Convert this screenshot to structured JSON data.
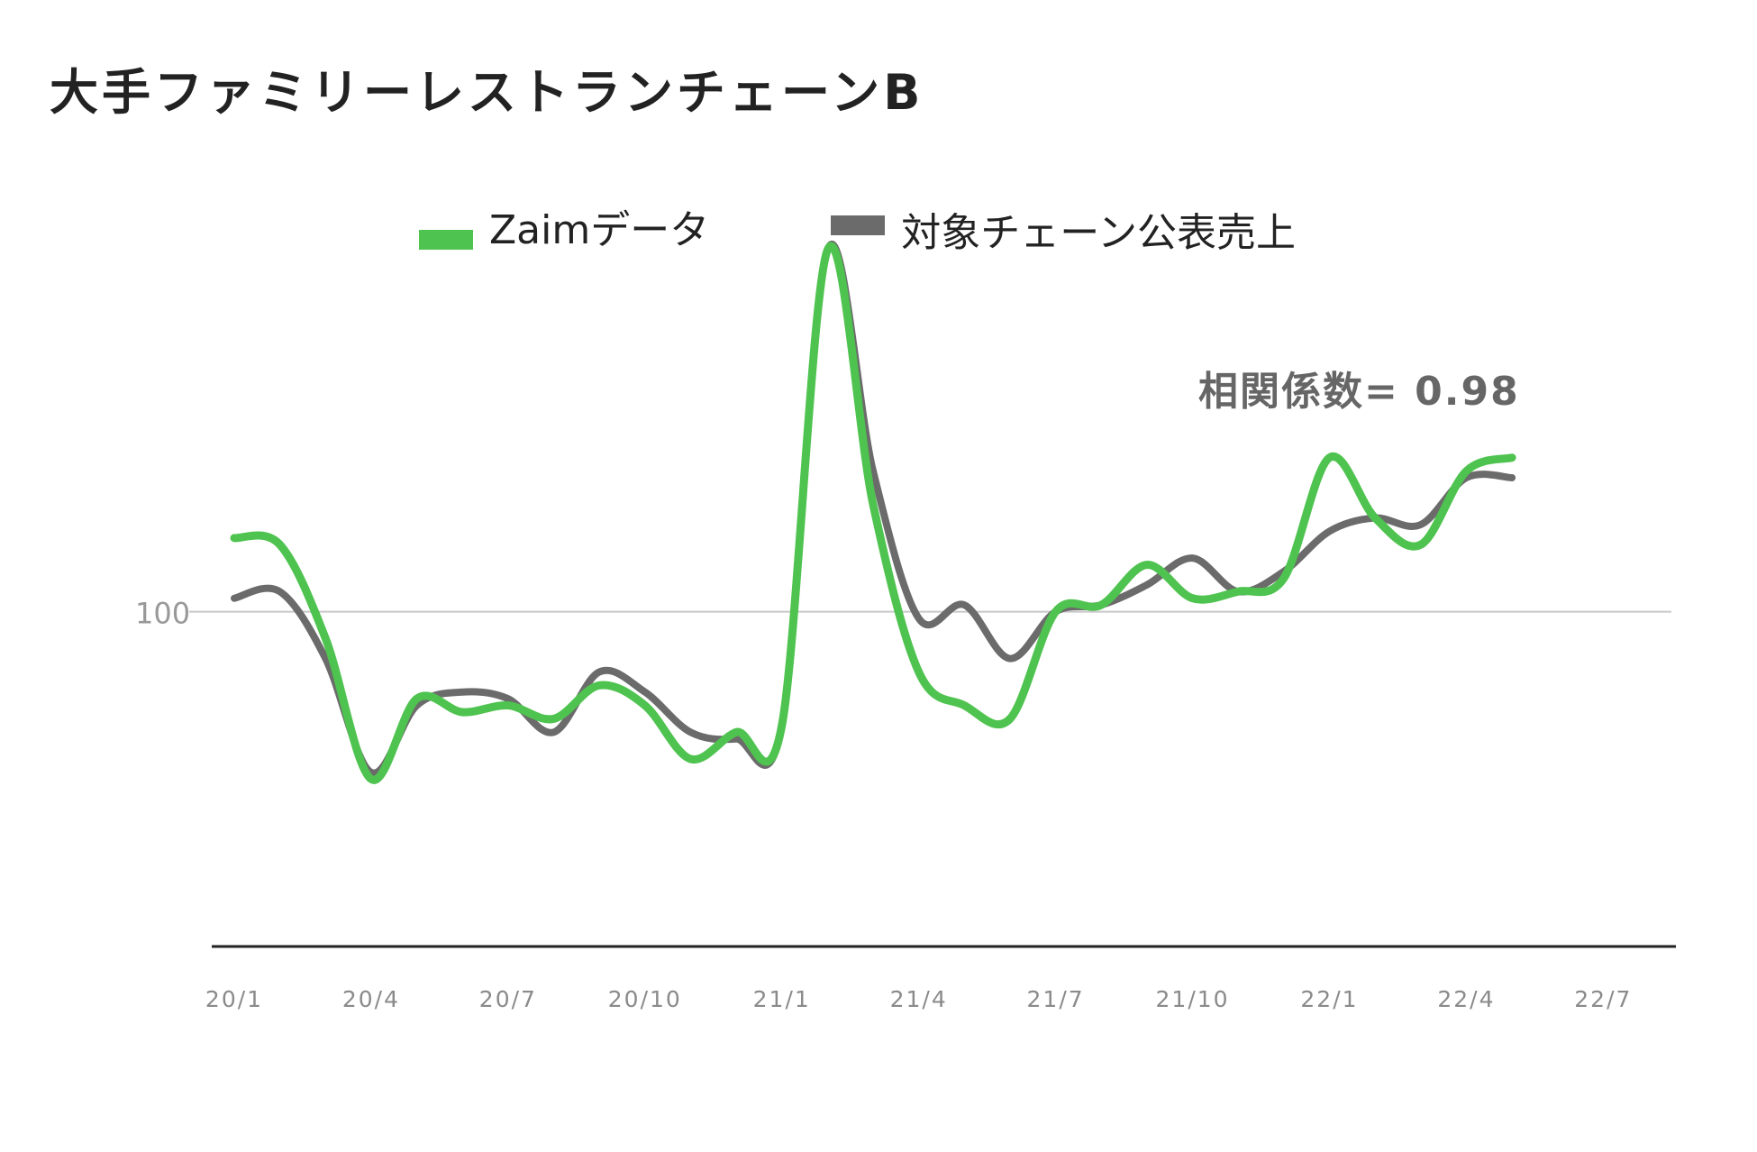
{
  "title": "大手ファミリーレストランチェーンB",
  "annotation": "相関係数= 0.98",
  "chart_data": {
    "type": "line",
    "title": "大手ファミリーレストランチェーンB",
    "xlabel": "",
    "ylabel": "",
    "x": [
      "20/1",
      "20/2",
      "20/3",
      "20/4",
      "20/5",
      "20/6",
      "20/7",
      "20/8",
      "20/9",
      "20/10",
      "20/11",
      "20/12",
      "21/1",
      "21/2",
      "21/3",
      "21/4",
      "21/5",
      "21/6",
      "21/7",
      "21/8",
      "21/9",
      "21/10",
      "21/11",
      "21/12",
      "22/1",
      "22/2",
      "22/3",
      "22/4",
      "22/5",
      "22/6",
      "22/7",
      "22/8"
    ],
    "x_tick_labels": [
      "20/1",
      "20/4",
      "20/7",
      "20/10",
      "21/1",
      "21/4",
      "21/7",
      "21/10",
      "22/1",
      "22/4",
      "22/7"
    ],
    "y_ticks": [
      100
    ],
    "y_tick_labels": [
      "100"
    ],
    "ylim": [
      50,
      155
    ],
    "grid": "horizontal line at 100",
    "legend_position": "top",
    "series": [
      {
        "name": "Zaimデータ",
        "color": "#4fc34f",
        "values": [
          111,
          110,
          96,
          75,
          87,
          85,
          86,
          84,
          89,
          86,
          78,
          82,
          83,
          154,
          116,
          91,
          86,
          84,
          100,
          101,
          107,
          102,
          103,
          105,
          123,
          114,
          110,
          121,
          123,
          null,
          null,
          null
        ]
      },
      {
        "name": "対象チェーン公表売上",
        "color": "#6b6b6b",
        "values": [
          102,
          103,
          93,
          76,
          86,
          88,
          87,
          82,
          91,
          88,
          82,
          81,
          83,
          154,
          121,
          99,
          101,
          93,
          100,
          101,
          104,
          108,
          103,
          106,
          112,
          114,
          113,
          120,
          120,
          null,
          null,
          null
        ]
      }
    ]
  }
}
